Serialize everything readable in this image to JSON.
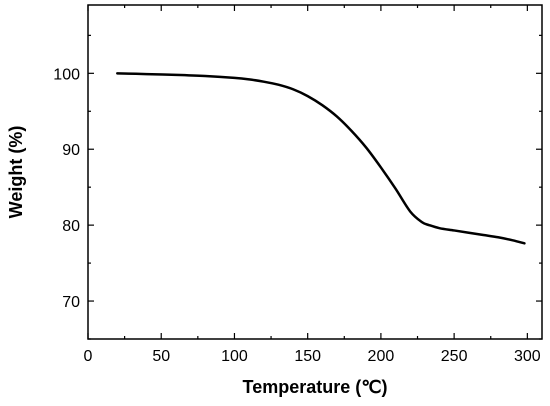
{
  "chart_data": {
    "type": "line",
    "xlabel": "Temperature (℃)",
    "ylabel": "Weight (%)",
    "xlim": [
      0,
      310
    ],
    "ylim": [
      65,
      109
    ],
    "x_ticks": [
      0,
      50,
      100,
      150,
      200,
      250,
      300
    ],
    "y_ticks": [
      70,
      80,
      90,
      100
    ],
    "grid": false,
    "series": [
      {
        "color": "#000000",
        "x": [
          20,
          40,
          60,
          80,
          100,
          110,
          120,
          130,
          140,
          150,
          160,
          170,
          180,
          190,
          200,
          210,
          220,
          228,
          233,
          240,
          250,
          260,
          270,
          280,
          290,
          298
        ],
        "y": [
          100.0,
          99.9,
          99.8,
          99.65,
          99.4,
          99.2,
          98.9,
          98.5,
          97.9,
          97.0,
          95.8,
          94.3,
          92.4,
          90.2,
          87.6,
          84.8,
          81.8,
          80.4,
          80.0,
          79.6,
          79.3,
          79.0,
          78.7,
          78.4,
          78.0,
          77.6
        ]
      }
    ]
  }
}
